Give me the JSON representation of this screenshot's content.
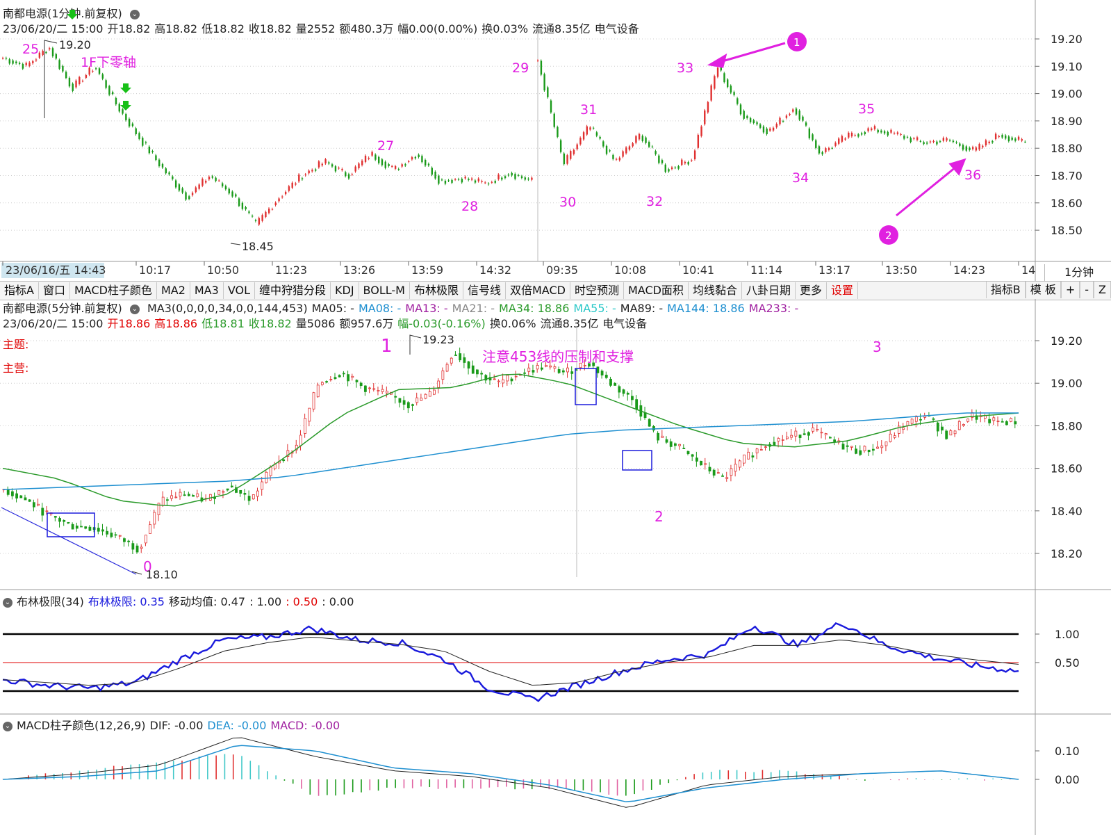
{
  "top_panel": {
    "title": "南都电源(1分钟.前复权)",
    "info": [
      "23/06/20/二 15:00",
      "开18.82",
      "高18.82",
      "低18.82",
      "收18.82",
      "量2552",
      "额480.3万",
      "幅0.00(0.00%)",
      "换0.03%",
      "流通8.35亿",
      "电气设备"
    ],
    "y_ticks": [
      "19.20",
      "19.10",
      "19.00",
      "18.90",
      "18.80",
      "18.70",
      "18.60",
      "18.50"
    ],
    "x_ticks": [
      "23/06/16/五 14:43",
      "10:17",
      "10:50",
      "11:23",
      "13:26",
      "13:59",
      "14:32",
      "09:35",
      "10:08",
      "10:41",
      "11:14",
      "13:17",
      "13:50",
      "14:23",
      "14"
    ],
    "period": "1分钟",
    "annotations": [
      {
        "text": "25",
        "color": "#e020e0"
      },
      {
        "text": "19.20",
        "color": "#222"
      },
      {
        "text": "1F下零轴",
        "color": "#e020e0"
      },
      {
        "text": "27",
        "color": "#e020e0"
      },
      {
        "text": "28",
        "color": "#e020e0"
      },
      {
        "text": "29",
        "color": "#e020e0"
      },
      {
        "text": "30",
        "color": "#e020e0"
      },
      {
        "text": "31",
        "color": "#e020e0"
      },
      {
        "text": "32",
        "color": "#e020e0"
      },
      {
        "text": "33",
        "color": "#e020e0"
      },
      {
        "text": "34",
        "color": "#e020e0"
      },
      {
        "text": "35",
        "color": "#e020e0"
      },
      {
        "text": "36",
        "color": "#e020e0"
      },
      {
        "text": "18.45",
        "color": "#222"
      }
    ],
    "circle_markers": [
      "1",
      "2"
    ]
  },
  "toolbar": {
    "items": [
      "指标A",
      "窗口",
      "MACD柱子颜色",
      "MA2",
      "MA3",
      "VOL",
      "缠中狩猎分段",
      "KDJ",
      "BOLL-M",
      "布林极限",
      "信号线",
      "双倍MACD",
      "时空预测",
      "MACD面积",
      "均线黏合",
      "八卦日期",
      "更多",
      "设置"
    ],
    "right_items": [
      "指标B",
      "模 板",
      "+",
      "-",
      "Z"
    ]
  },
  "mid_panel": {
    "title": "南都电源(5分钟.前复权)",
    "ma_legend": [
      {
        "text": "MA3(0,0,0,0,34,0,0,144,453)",
        "color": "#222"
      },
      {
        "text": "MA05: -",
        "color": "#222"
      },
      {
        "text": "MA08: -",
        "color": "#1e8fd0"
      },
      {
        "text": "MA13: -",
        "color": "#a020a0"
      },
      {
        "text": "MA21: -",
        "color": "#888888"
      },
      {
        "text": "MA34: 18.86",
        "color": "#2a9a2a"
      },
      {
        "text": "MA55: -",
        "color": "#2ac8c8"
      },
      {
        "text": "MA89: -",
        "color": "#222"
      },
      {
        "text": "MA144: 18.86",
        "color": "#1e8fd0"
      },
      {
        "text": "MA233: -",
        "color": "#a020a0"
      }
    ],
    "info": [
      {
        "text": "23/06/20/二 15:00",
        "color": "#222"
      },
      {
        "text": "开18.86",
        "color": "#e00000"
      },
      {
        "text": "高18.86",
        "color": "#e00000"
      },
      {
        "text": "低18.81",
        "color": "#2a9a2a"
      },
      {
        "text": "收18.82",
        "color": "#2a9a2a"
      },
      {
        "text": "量5086",
        "color": "#222"
      },
      {
        "text": "额957.6万",
        "color": "#222"
      },
      {
        "text": "幅-0.03(-0.16%)",
        "color": "#2a9a2a"
      },
      {
        "text": "换0.06%",
        "color": "#222"
      },
      {
        "text": "流通8.35亿",
        "color": "#222"
      },
      {
        "text": "电气设备",
        "color": "#222"
      }
    ],
    "side_labels": [
      "主题:",
      "主营:"
    ],
    "y_ticks": [
      "19.20",
      "19.00",
      "18.80",
      "18.60",
      "18.40",
      "18.20"
    ],
    "annotations": [
      {
        "text": "1",
        "color": "#e020e0"
      },
      {
        "text": "19.23",
        "color": "#222"
      },
      {
        "text": "注意453线的压制和支撑",
        "color": "#e020e0"
      },
      {
        "text": "2",
        "color": "#e020e0"
      },
      {
        "text": "3",
        "color": "#e020e0"
      },
      {
        "text": "0",
        "color": "#e020e0"
      },
      {
        "text": "18.10",
        "color": "#222"
      }
    ]
  },
  "boll_panel": {
    "title": "布林极限(34)",
    "legend": [
      {
        "text": "布林极限: 0.35",
        "color": "#1a1adc"
      },
      {
        "text": "移动均值: 0.47",
        "color": "#222"
      },
      {
        "text": ": 1.00",
        "color": "#222"
      },
      {
        "text": ": 0.50",
        "color": "#e00000"
      },
      {
        "text": ": 0.00",
        "color": "#222"
      }
    ],
    "y_ticks": [
      "1.00",
      "0.50"
    ]
  },
  "macd_panel": {
    "title": "MACD柱子颜色(12,26,9)",
    "legend": [
      {
        "text": "DIF: -0.00",
        "color": "#222"
      },
      {
        "text": "DEA: -0.00",
        "color": "#1e8fd0"
      },
      {
        "text": "MACD: -0.00",
        "color": "#a020a0"
      }
    ],
    "y_ticks": [
      "0.10",
      "0.00"
    ]
  },
  "colors": {
    "up": "#e03030",
    "down": "#1a9a1a",
    "annot": "#e020e0",
    "ma34": "#2a9a2a",
    "ma144": "#1e8fd0",
    "boll": "#1a1adc"
  },
  "chart_data": [
    {
      "type": "line",
      "title": "南都电源(1分钟.前复权)",
      "x": [
        "23/06/16 14:43",
        "10:17",
        "10:50",
        "11:23",
        "13:26",
        "13:59",
        "14:32",
        "23/06/20 09:35",
        "10:08",
        "10:41",
        "11:14",
        "13:17",
        "13:50",
        "14:23"
      ],
      "series": [
        {
          "values": [
            19.12,
            18.88,
            18.62,
            18.73,
            18.72,
            18.76,
            18.68,
            19.05,
            18.83,
            18.8,
            18.97,
            18.86,
            18.81,
            18.8
          ]
        }
      ],
      "ylim": [
        18.45,
        19.25
      ]
    },
    {
      "type": "line",
      "title": "南都电源(5分钟.前复权)",
      "series": [
        {
          "name": "MA34",
          "values": [
            18.6,
            18.55,
            18.45,
            18.42,
            18.48,
            18.65,
            18.85,
            18.97,
            18.98,
            19.05,
            19.0,
            18.9,
            18.8,
            18.72,
            18.7,
            18.73,
            18.8,
            18.84,
            18.86
          ]
        },
        {
          "name": "MA144",
          "values": [
            18.5,
            18.51,
            18.52,
            18.53,
            18.54,
            18.56,
            18.6,
            18.64,
            18.68,
            18.72,
            18.76,
            18.78,
            18.79,
            18.8,
            18.81,
            18.82,
            18.84,
            18.86,
            18.86
          ]
        }
      ],
      "ylim": [
        18.1,
        19.23
      ]
    },
    {
      "type": "line",
      "title": "布林极限(34)",
      "series": [
        {
          "name": "布林极限",
          "values": [
            0.2,
            0.1,
            0.05,
            0.15,
            0.55,
            0.9,
            0.95,
            1.1,
            0.9,
            0.85,
            0.55,
            0.05,
            -0.15,
            0.1,
            0.35,
            0.55,
            0.65,
            1.15,
            0.8,
            1.2,
            0.8,
            0.6,
            0.45,
            0.35
          ]
        },
        {
          "name": "移动均值",
          "values": [
            0.2,
            0.15,
            0.1,
            0.15,
            0.4,
            0.7,
            0.85,
            0.95,
            0.88,
            0.82,
            0.7,
            0.35,
            0.1,
            0.15,
            0.35,
            0.5,
            0.6,
            0.8,
            0.8,
            0.9,
            0.8,
            0.65,
            0.55,
            0.47
          ]
        }
      ],
      "ylim": [
        -0.2,
        1.3
      ]
    },
    {
      "type": "bar",
      "title": "MACD柱子颜色(12,26,9)",
      "series": [
        {
          "name": "DIF",
          "values": [
            0.0,
            0.02,
            0.05,
            0.15,
            0.08,
            0.03,
            0.01,
            -0.03,
            -0.1,
            -0.02,
            0.01,
            0.02,
            0.03,
            0.0
          ]
        },
        {
          "name": "DEA",
          "values": [
            0.0,
            0.01,
            0.03,
            0.12,
            0.1,
            0.04,
            0.02,
            -0.02,
            -0.08,
            -0.03,
            0.0,
            0.02,
            0.03,
            0.0
          ]
        }
      ],
      "ylim": [
        -0.12,
        0.17
      ]
    }
  ]
}
